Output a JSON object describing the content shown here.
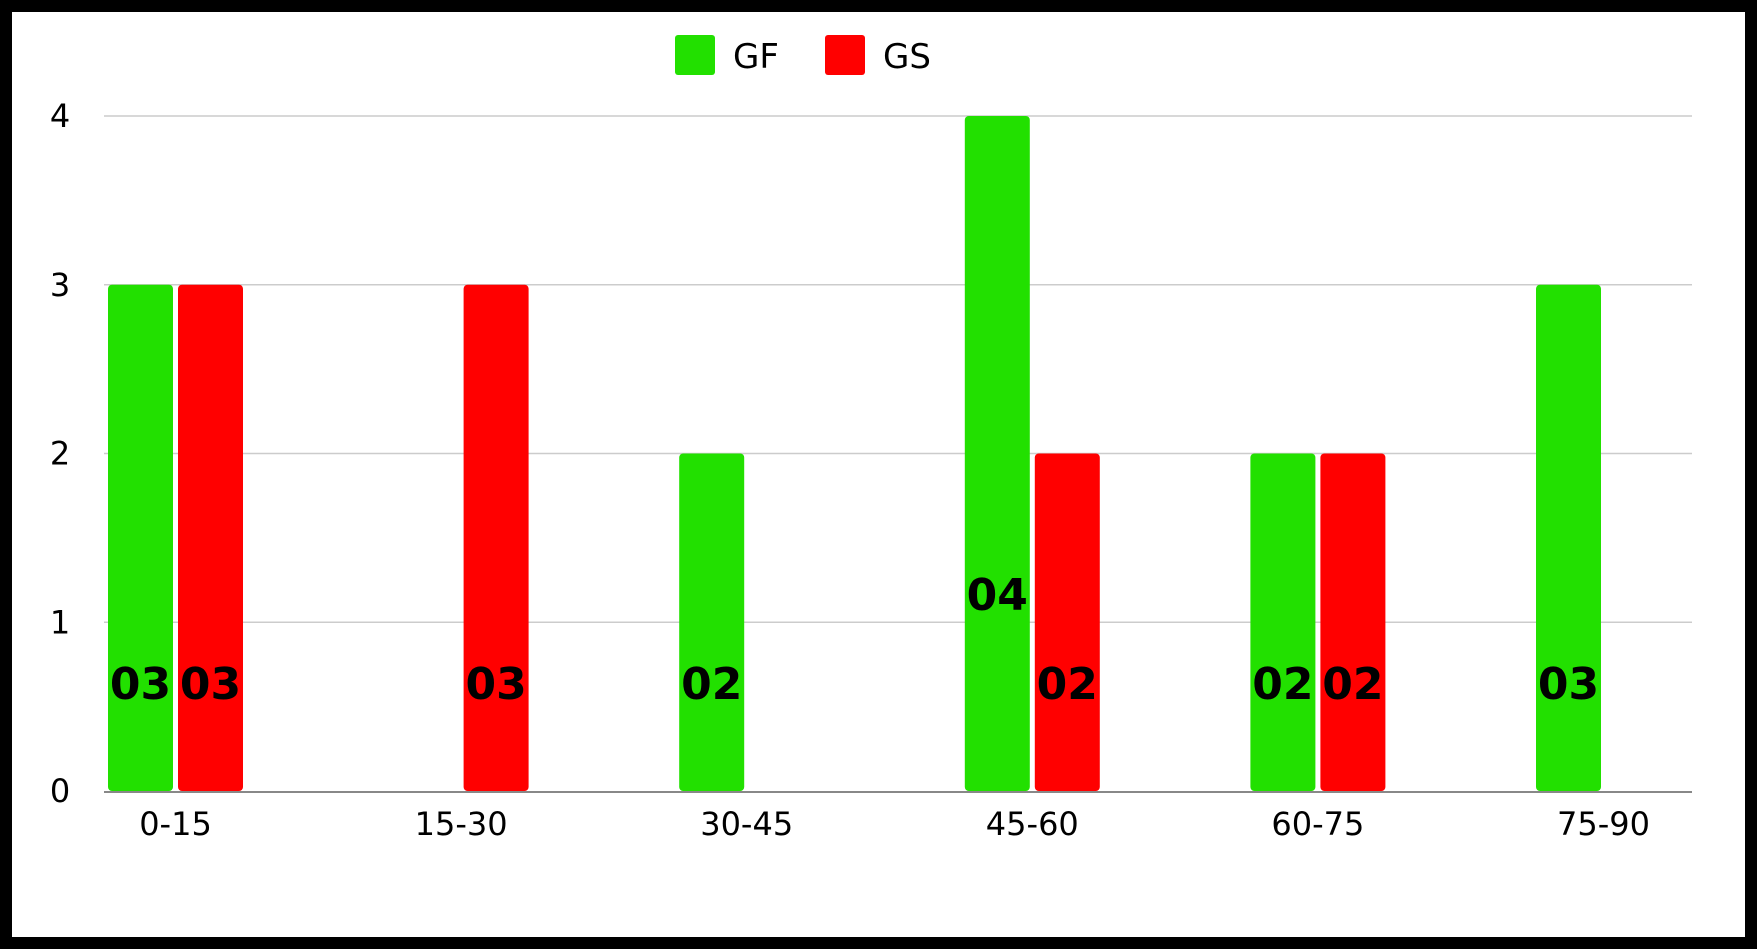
{
  "chart_data": {
    "type": "bar",
    "categories": [
      "0-15",
      "15-30",
      "30-45",
      "45-60",
      "60-75",
      "75-90"
    ],
    "series": [
      {
        "name": "GF",
        "color": "#22e000",
        "values": [
          3,
          0,
          2,
          4,
          2,
          3
        ],
        "labels": [
          "03",
          "",
          "02",
          "04",
          "02",
          "03"
        ]
      },
      {
        "name": "GS",
        "color": "#ff0000",
        "values": [
          3,
          3,
          0,
          2,
          2,
          0
        ],
        "labels": [
          "03",
          "03",
          "",
          "02",
          "02",
          ""
        ]
      }
    ],
    "ylim": [
      0,
      4
    ],
    "yticks": [
      "0",
      "1",
      "2",
      "3",
      "4"
    ],
    "xlabel": "",
    "ylabel": "",
    "title": "",
    "legend_position": "top-center",
    "grid": true
  }
}
